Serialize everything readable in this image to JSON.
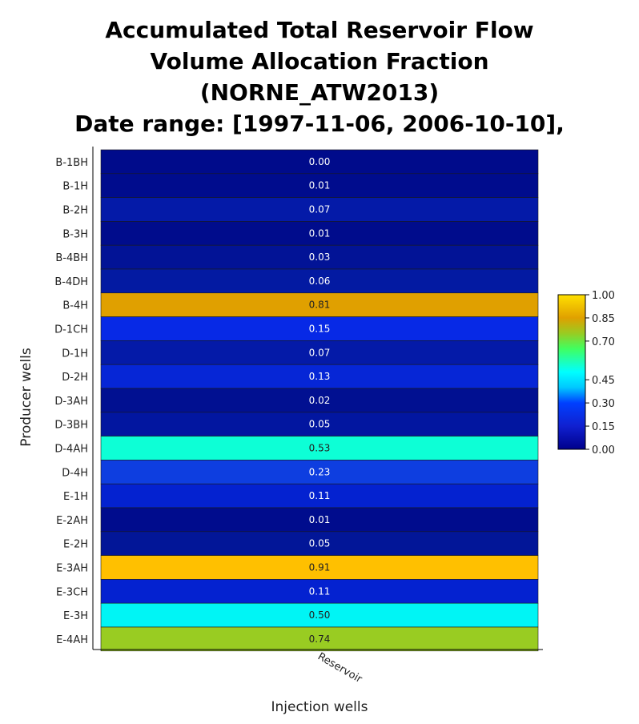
{
  "chart_data": {
    "type": "heatmap",
    "title_lines": [
      "Accumulated Total Reservoir Flow",
      "Volume Allocation Fraction",
      "(NORNE_ATW2013)",
      "Date range: [1997-11-06, 2006-10-10],"
    ],
    "xlabel": "Injection wells",
    "ylabel": "Producer wells",
    "x_categories": [
      "Reservoir"
    ],
    "y_categories": [
      "B-1BH",
      "B-1H",
      "B-2H",
      "B-3H",
      "B-4BH",
      "B-4DH",
      "B-4H",
      "D-1CH",
      "D-1H",
      "D-2H",
      "D-3AH",
      "D-3BH",
      "D-4AH",
      "D-4H",
      "E-1H",
      "E-2AH",
      "E-2H",
      "E-3AH",
      "E-3CH",
      "E-3H",
      "E-4AH"
    ],
    "values": [
      0.0,
      0.01,
      0.07,
      0.01,
      0.03,
      0.06,
      0.81,
      0.15,
      0.07,
      0.13,
      0.02,
      0.05,
      0.53,
      0.23,
      0.11,
      0.01,
      0.05,
      0.91,
      0.11,
      0.5,
      0.74
    ],
    "value_labels": [
      "0.00",
      "0.01",
      "0.07",
      "0.01",
      "0.03",
      "0.06",
      "0.81",
      "0.15",
      "0.07",
      "0.13",
      "0.02",
      "0.05",
      "0.53",
      "0.23",
      "0.11",
      "0.01",
      "0.05",
      "0.91",
      "0.11",
      "0.50",
      "0.74"
    ],
    "cell_colors": [
      "#000b8b",
      "#000c8d",
      "#041aa8",
      "#000c8c",
      "#021396",
      "#031aa2",
      "#e0a000",
      "#0729e6",
      "#041aa8",
      "#0626d6",
      "#011091",
      "#0216a0",
      "#0dffd6",
      "#0e3ee0",
      "#0422d0",
      "#000c8d",
      "#021698",
      "#ffc000",
      "#0422d0",
      "#00f5f5",
      "#99cc22"
    ],
    "colorscale": {
      "range": [
        0,
        1
      ],
      "tick_values": [
        0.0,
        0.15,
        0.3,
        0.45,
        0.7,
        0.85,
        1.0
      ],
      "tick_labels": [
        "0.00",
        "0.15",
        "0.30",
        "0.45",
        "0.70",
        "0.85",
        "1.00"
      ],
      "stops": [
        {
          "v": 0.0,
          "color": "#00008b"
        },
        {
          "v": 0.15,
          "color": "#1020d0"
        },
        {
          "v": 0.3,
          "color": "#0040ff"
        },
        {
          "v": 0.4,
          "color": "#00c8ff"
        },
        {
          "v": 0.5,
          "color": "#00ffff"
        },
        {
          "v": 0.65,
          "color": "#40ff60"
        },
        {
          "v": 0.75,
          "color": "#99cc22"
        },
        {
          "v": 0.85,
          "color": "#e0a000"
        },
        {
          "v": 1.0,
          "color": "#ffe000"
        }
      ]
    }
  }
}
